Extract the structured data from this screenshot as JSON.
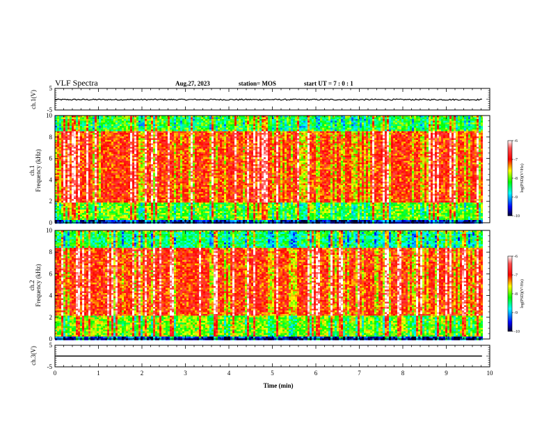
{
  "header": {
    "title": "VLF Spectra",
    "date": "Aug.27, 2023",
    "station": "station= MOS",
    "start": "start  UT  =   7 : 0  : 1"
  },
  "chart_data": [
    {
      "type": "line",
      "id": "ch1-waveform",
      "ylabel": "ch.1(V)",
      "ylim": [
        -5,
        5
      ],
      "yticks": [
        "5",
        "-5"
      ],
      "x_range": [
        0,
        10
      ],
      "series": [
        {
          "values_constant": -0.2,
          "noise": "small"
        }
      ]
    },
    {
      "type": "heatmap",
      "id": "ch1-spectrogram",
      "ylabel": "ch.1\nFrequency (kHz)",
      "xlim": [
        0,
        10
      ],
      "ylim": [
        0,
        10
      ],
      "yticks": [
        "0",
        "2",
        "4",
        "6",
        "8",
        "10"
      ],
      "colorbar": {
        "label": "log(PSD)(V²/Hz)",
        "range": [
          -10,
          -6
        ],
        "ticks": [
          "-6",
          "-7",
          "-8",
          "-9",
          "-10"
        ]
      },
      "bands": [
        {
          "freq": [
            0,
            0.3
          ],
          "level": -9.5
        },
        {
          "freq": [
            0.3,
            2.0
          ],
          "level": -8.0
        },
        {
          "freq": [
            2.0,
            8.6
          ],
          "level": -7.0
        },
        {
          "freq": [
            8.6,
            10
          ],
          "level": -8.2
        }
      ]
    },
    {
      "type": "heatmap",
      "id": "ch2-spectrogram",
      "ylabel": "ch.2\nFrequency (kHz)",
      "xlim": [
        0,
        10
      ],
      "ylim": [
        0,
        10
      ],
      "yticks": [
        "0",
        "2",
        "4",
        "6",
        "8",
        "10"
      ],
      "colorbar": {
        "label": "log(PSD)(V²/Hz)",
        "range": [
          -10,
          -6
        ],
        "ticks": [
          "-6",
          "-7",
          "-8",
          "-9",
          "-10"
        ]
      },
      "bands": [
        {
          "freq": [
            0,
            0.3
          ],
          "level": -9.5
        },
        {
          "freq": [
            0.3,
            2.2
          ],
          "level": -7.9
        },
        {
          "freq": [
            2.2,
            8.4
          ],
          "level": -7.0
        },
        {
          "freq": [
            8.4,
            10
          ],
          "level": -8.4
        }
      ]
    },
    {
      "type": "line",
      "id": "ch3-waveform",
      "ylabel": "ch.3(V)",
      "ylim": [
        -5,
        5
      ],
      "yticks": [
        "5",
        "-5"
      ],
      "x_range": [
        0,
        10
      ],
      "series": [
        {
          "values_constant": 0
        }
      ]
    }
  ],
  "xaxis": {
    "label": "Time (min)",
    "ticks": [
      "0",
      "1",
      "2",
      "3",
      "4",
      "5",
      "6",
      "7",
      "8",
      "9",
      "10"
    ]
  }
}
